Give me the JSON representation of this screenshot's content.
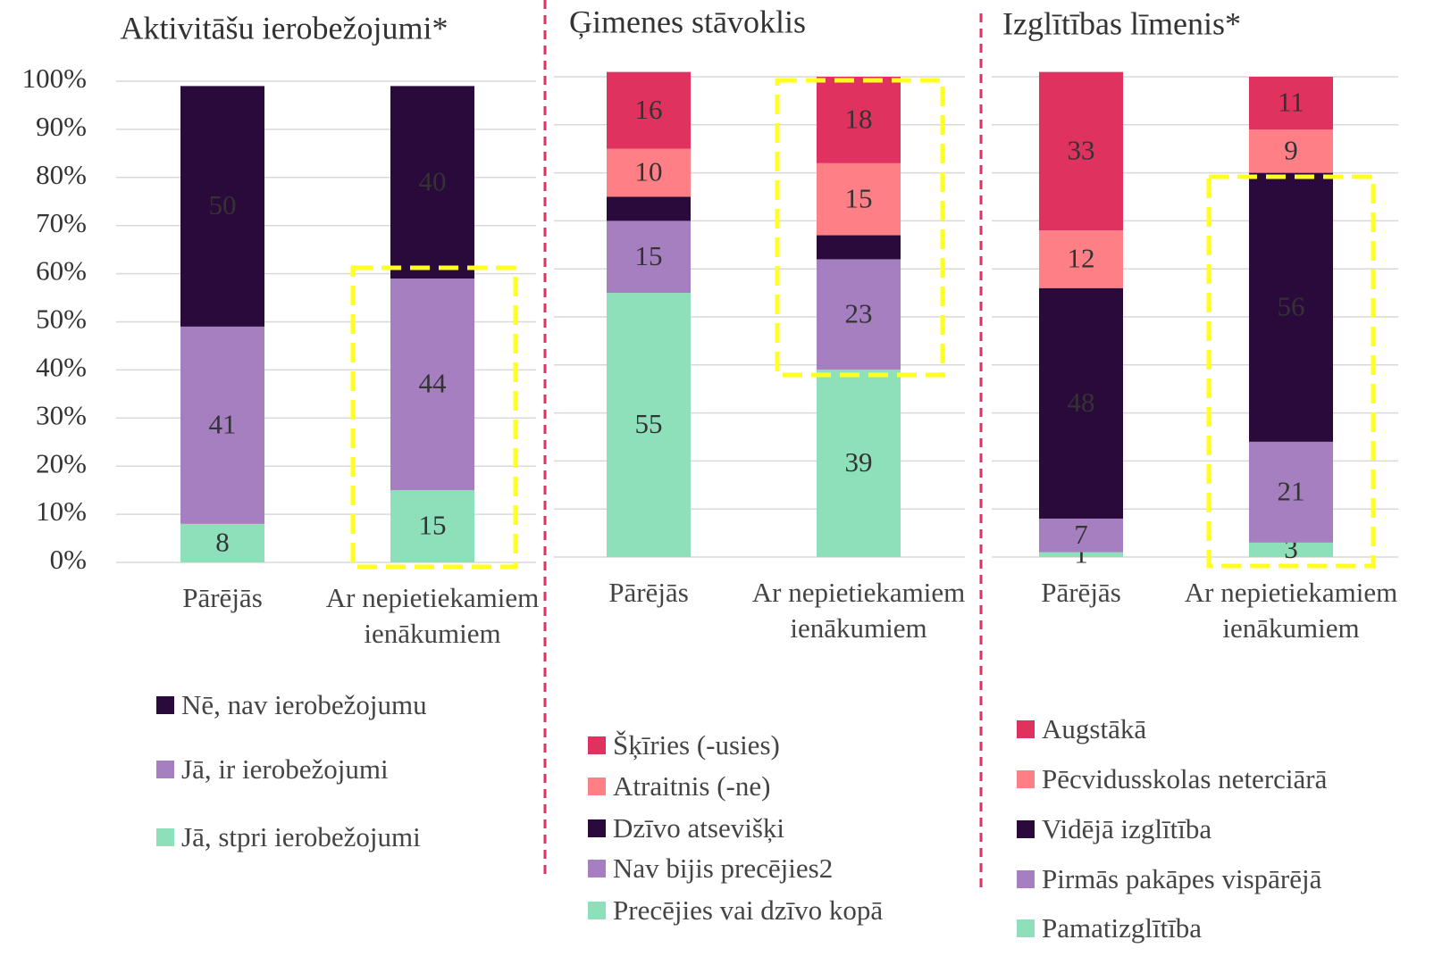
{
  "chart_data": [
    {
      "type": "stacked_bar",
      "title": "Aktivitāšu ierobežojumi*",
      "categories": [
        "Pārējās",
        "Ar nepietiekamiem ienākumiem"
      ],
      "series": [
        {
          "name": "Jā, stpri ierobežojumi",
          "color": "#8ee0bb",
          "values": [
            8,
            15
          ]
        },
        {
          "name": "Jā, ir ierobežojumi",
          "color": "#a57fbf",
          "values": [
            41,
            44
          ]
        },
        {
          "name": "Nē, nav ierobežojumu",
          "color": "#2a0a3a",
          "values": [
            50,
            40
          ]
        }
      ],
      "ylim": [
        0,
        100
      ],
      "yticks": [
        {
          "value": 0,
          "label": "0%"
        },
        {
          "value": 10,
          "label": "10%"
        },
        {
          "value": 20,
          "label": "20%"
        },
        {
          "value": 30,
          "label": "30%"
        },
        {
          "value": 40,
          "label": "40%"
        },
        {
          "value": 50,
          "label": "50%"
        },
        {
          "value": 60,
          "label": "60%"
        },
        {
          "value": 70,
          "label": "70%"
        },
        {
          "value": 80,
          "label": "80%"
        },
        {
          "value": 90,
          "label": "90%"
        },
        {
          "value": 100,
          "label": "100%"
        }
      ],
      "grid": true
    },
    {
      "type": "stacked_bar",
      "title": "Ģimenes stāvoklis",
      "categories": [
        "Pārējās",
        "Ar nepietiekamiem ienākumiem"
      ],
      "series": [
        {
          "name": "Precējies vai  dzīvo kopā",
          "color": "#8ee0bb",
          "values": [
            55,
            39
          ]
        },
        {
          "name": "Nav bijis precējies2",
          "color": "#a57fbf",
          "values": [
            15,
            23
          ]
        },
        {
          "name": "Dzīvo atsevišķi",
          "color": "#2a0a3a",
          "values": [
            5,
            5
          ],
          "value_labels": [
            null,
            null
          ]
        },
        {
          "name": "Atraitnis (-ne)",
          "color": "#ff7f87",
          "values": [
            10,
            15
          ]
        },
        {
          "name": "Šķīries (-usies)",
          "color": "#e0325f",
          "values": [
            16,
            18
          ]
        }
      ],
      "ylim": [
        0,
        100
      ],
      "grid": true
    },
    {
      "type": "stacked_bar",
      "title": "Izglītības līmenis*",
      "categories": [
        "Pārējās",
        "Ar nepietiekamiem ienākumiem"
      ],
      "series": [
        {
          "name": "Pamatizglītība",
          "color": "#8ee0bb",
          "values": [
            1,
            3
          ]
        },
        {
          "name": "Pirmās pakāpes vispārējā",
          "color": "#a57fbf",
          "values": [
            7,
            21
          ]
        },
        {
          "name": "Vidējā izglītība",
          "color": "#2a0a3a",
          "values": [
            48,
            56
          ]
        },
        {
          "name": "Pēcvidusskolas neterciārā",
          "color": "#ff7f87",
          "values": [
            12,
            9
          ]
        },
        {
          "name": "Augstākā",
          "color": "#e0325f",
          "values": [
            33,
            11
          ]
        }
      ],
      "ylim": [
        0,
        100
      ],
      "grid": true
    }
  ]
}
